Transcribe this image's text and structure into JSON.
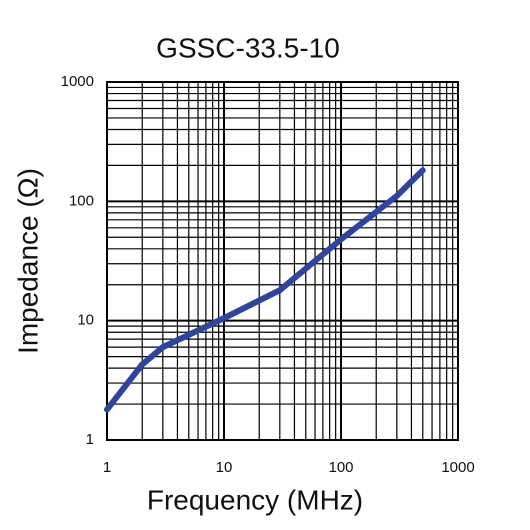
{
  "chart_data": {
    "type": "line",
    "title": "GSSC-33.5-10",
    "x_label": "Frequency (MHz)",
    "y_label": "Impedance (Ω)",
    "x": [
      1,
      2,
      3,
      10,
      30,
      100,
      300,
      500
    ],
    "series": [
      {
        "color": "#2e45a0",
        "values": [
          1.8,
          4.3,
          6,
          10.5,
          18,
          48,
          111,
          182
        ]
      }
    ],
    "xscale": "log",
    "yscale": "log",
    "xlim": [
      1,
      1000
    ],
    "ylim": [
      1,
      1000
    ],
    "xticks": [
      1,
      10,
      100,
      1000
    ],
    "yticks": [
      1,
      10,
      100,
      1000
    ],
    "grid": true,
    "minor_grid": true
  }
}
